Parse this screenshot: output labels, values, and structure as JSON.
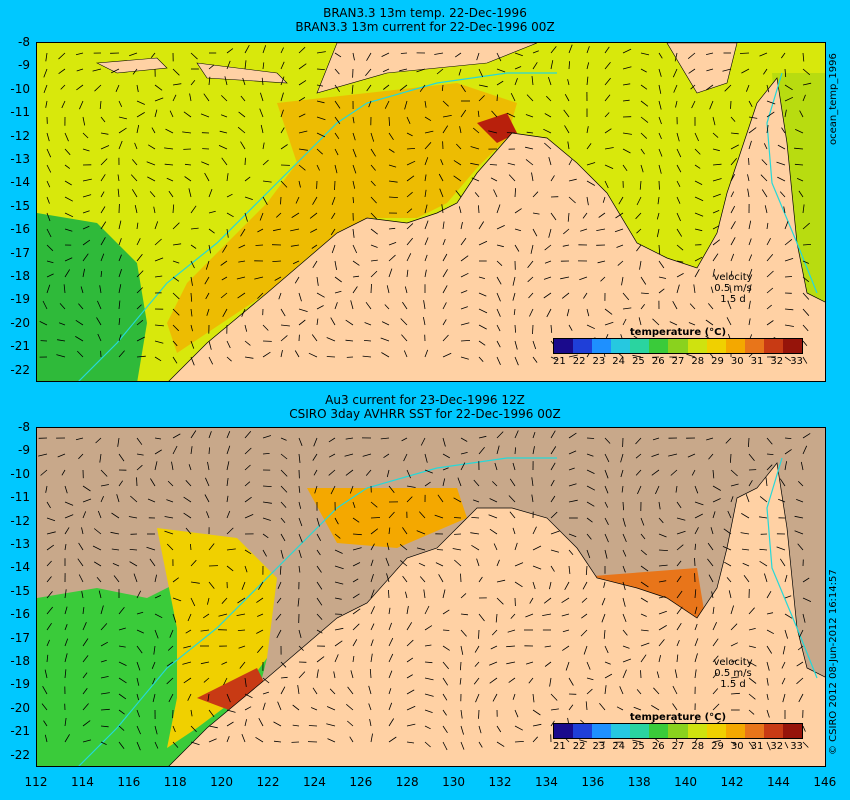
{
  "panel1": {
    "title_line1": "BRAN3.3 13m temp. 22-Dec-1996",
    "title_line2": "BRAN3.3 13m current for 22-Dec-1996 00Z",
    "side_label": "ocean_temp_1996",
    "velocity": {
      "title": "velocity",
      "speed": "0.5 m/s",
      "duration": "1.5 d"
    },
    "colorbar": {
      "label": "temperature (°C)"
    }
  },
  "panel2": {
    "title_line1": "Au3 current for 23-Dec-1996 12Z",
    "title_line2": "CSIRO 3day AVHRR SST for 22-Dec-1996 00Z",
    "side_label": "© CSIRO 2012   08-Jun-2012 16:14:57",
    "velocity": {
      "title": "velocity",
      "speed": "0.5 m/s",
      "duration": "1.5 d"
    },
    "colorbar": {
      "label": "temperature (°C)"
    }
  },
  "axes": {
    "y_ticks": [
      "-8",
      "-9",
      "-10",
      "-11",
      "-12",
      "-13",
      "-14",
      "-15",
      "-16",
      "-17",
      "-18",
      "-19",
      "-20",
      "-21",
      "-22"
    ],
    "x_ticks": [
      "112",
      "114",
      "116",
      "118",
      "120",
      "122",
      "124",
      "126",
      "128",
      "130",
      "132",
      "134",
      "136",
      "138",
      "140",
      "142",
      "144",
      "146"
    ]
  },
  "colorbar_ticks": [
    "21",
    "22",
    "23",
    "24",
    "25",
    "26",
    "27",
    "28",
    "29",
    "30",
    "31",
    "32",
    "33"
  ],
  "colors": {
    "background": "#00c8ff",
    "land": "#ffd1a4",
    "missing_sst": "#c8a88a",
    "scale": [
      "#1a0a8c",
      "#1f3fd8",
      "#1e90ff",
      "#26c8e0",
      "#2ad4a0",
      "#3acb3a",
      "#8ad21e",
      "#cfe20f",
      "#f0d000",
      "#f4a800",
      "#e8751a",
      "#c83a14",
      "#96140a"
    ]
  }
}
